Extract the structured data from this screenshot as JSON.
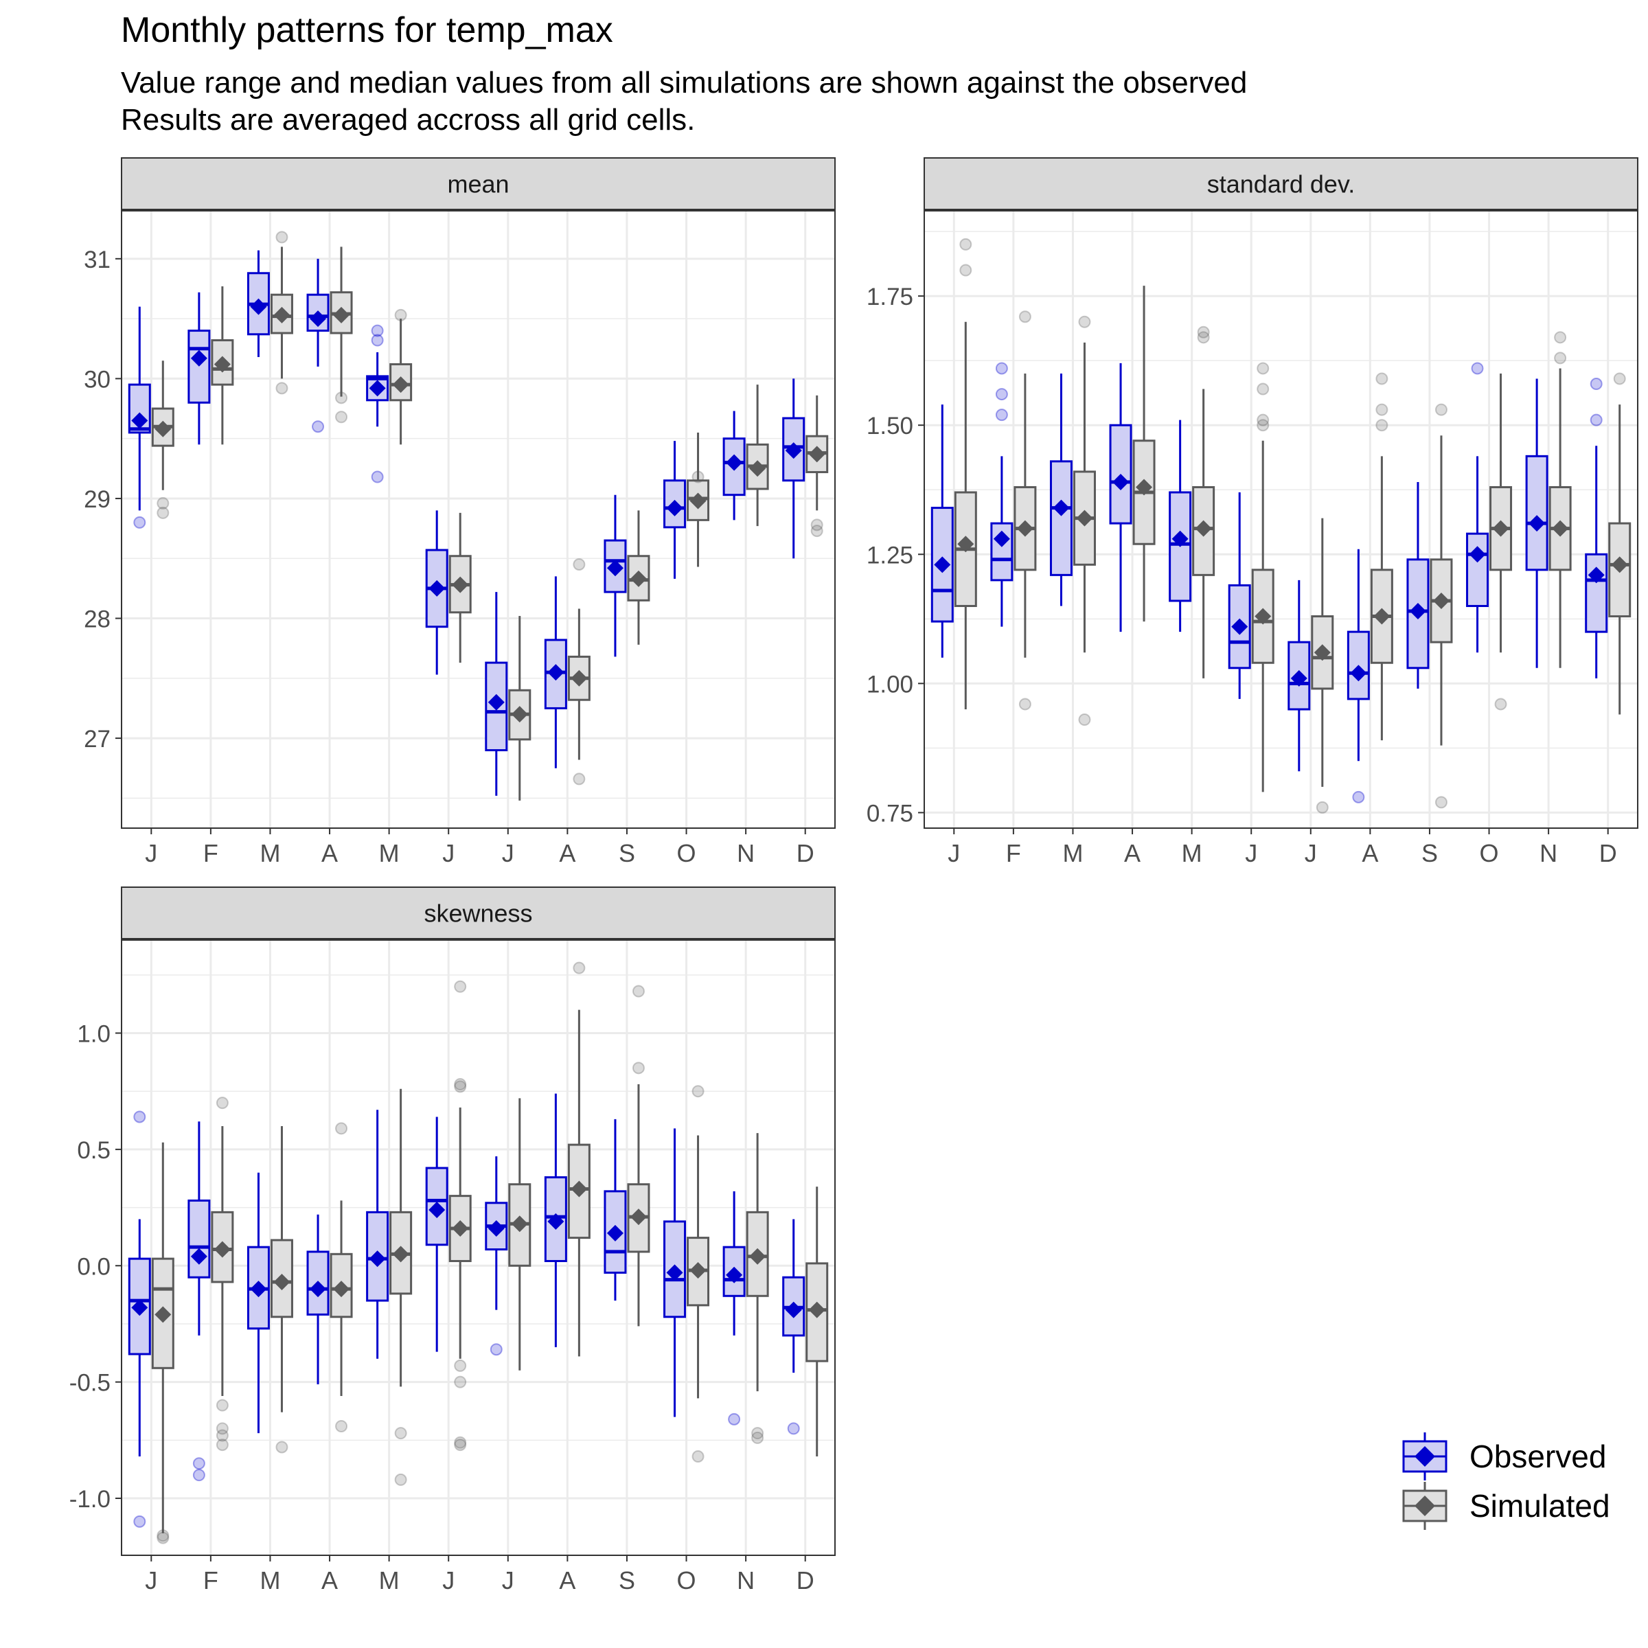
{
  "title": "Monthly patterns for temp_max",
  "subtitle_line1": "Value range and median values from all simulations are shown against the observed",
  "subtitle_line2": "Results are averaged accross all grid cells.",
  "colors": {
    "observed_line": "#0000CD",
    "observed_fill": "#CFCFF5",
    "simulated_line": "#5A5A5A",
    "simulated_fill": "#E0E0E0",
    "strip_fill": "#D9D9D9",
    "grid": "#EBEBEB"
  },
  "legend": {
    "items": [
      {
        "label": "Observed",
        "key": "observed"
      },
      {
        "label": "Simulated",
        "key": "simulated"
      }
    ]
  },
  "chart_data": [
    {
      "type": "boxplot",
      "panel": "mean",
      "categories": [
        "J",
        "F",
        "M",
        "A",
        "M",
        "J",
        "J",
        "A",
        "S",
        "O",
        "N",
        "D"
      ],
      "y_ticks": [
        27,
        28,
        29,
        30,
        31
      ],
      "ylim": [
        26.25,
        31.4
      ],
      "observed": [
        {
          "min": 28.9,
          "q1": 29.55,
          "median": 29.58,
          "q3": 29.95,
          "max": 30.6,
          "mean": 29.65,
          "outliers": [
            28.8
          ]
        },
        {
          "min": 29.45,
          "q1": 29.8,
          "median": 30.25,
          "q3": 30.4,
          "max": 30.72,
          "mean": 30.17,
          "outliers": []
        },
        {
          "min": 30.18,
          "q1": 30.37,
          "median": 30.62,
          "q3": 30.88,
          "max": 31.07,
          "mean": 30.6,
          "outliers": []
        },
        {
          "min": 30.1,
          "q1": 30.4,
          "median": 30.52,
          "q3": 30.7,
          "max": 31.0,
          "mean": 30.5,
          "outliers": [
            29.6
          ]
        },
        {
          "min": 29.6,
          "q1": 29.82,
          "median": 30.0,
          "q3": 30.02,
          "max": 30.22,
          "mean": 29.92,
          "outliers": [
            29.18,
            30.32,
            30.4
          ]
        },
        {
          "min": 27.53,
          "q1": 27.93,
          "median": 28.25,
          "q3": 28.57,
          "max": 28.9,
          "mean": 28.25,
          "outliers": []
        },
        {
          "min": 26.52,
          "q1": 26.9,
          "median": 27.22,
          "q3": 27.63,
          "max": 28.22,
          "mean": 27.3,
          "outliers": []
        },
        {
          "min": 26.75,
          "q1": 27.25,
          "median": 27.55,
          "q3": 27.82,
          "max": 28.35,
          "mean": 27.55,
          "outliers": []
        },
        {
          "min": 27.68,
          "q1": 28.22,
          "median": 28.48,
          "q3": 28.65,
          "max": 29.03,
          "mean": 28.42,
          "outliers": []
        },
        {
          "min": 28.33,
          "q1": 28.76,
          "median": 28.92,
          "q3": 29.15,
          "max": 29.48,
          "mean": 28.92,
          "outliers": []
        },
        {
          "min": 28.82,
          "q1": 29.03,
          "median": 29.3,
          "q3": 29.5,
          "max": 29.73,
          "mean": 29.3,
          "outliers": []
        },
        {
          "min": 28.5,
          "q1": 29.15,
          "median": 29.43,
          "q3": 29.67,
          "max": 30.0,
          "mean": 29.4,
          "outliers": []
        }
      ],
      "simulated": [
        {
          "min": 29.07,
          "q1": 29.44,
          "median": 29.6,
          "q3": 29.75,
          "max": 30.15,
          "mean": 29.58,
          "outliers": [
            28.88,
            28.96
          ]
        },
        {
          "min": 29.45,
          "q1": 29.95,
          "median": 30.08,
          "q3": 30.32,
          "max": 30.77,
          "mean": 30.12,
          "outliers": []
        },
        {
          "min": 30.0,
          "q1": 30.38,
          "median": 30.52,
          "q3": 30.7,
          "max": 31.1,
          "mean": 30.53,
          "outliers": [
            29.92,
            31.18
          ]
        },
        {
          "min": 29.85,
          "q1": 30.38,
          "median": 30.54,
          "q3": 30.72,
          "max": 31.1,
          "mean": 30.53,
          "outliers": [
            29.68,
            29.84
          ]
        },
        {
          "min": 29.45,
          "q1": 29.82,
          "median": 29.95,
          "q3": 30.12,
          "max": 30.5,
          "mean": 29.95,
          "outliers": [
            30.53
          ]
        },
        {
          "min": 27.63,
          "q1": 28.05,
          "median": 28.28,
          "q3": 28.52,
          "max": 28.88,
          "mean": 28.28,
          "outliers": []
        },
        {
          "min": 26.48,
          "q1": 26.99,
          "median": 27.2,
          "q3": 27.4,
          "max": 28.02,
          "mean": 27.2,
          "outliers": []
        },
        {
          "min": 26.82,
          "q1": 27.32,
          "median": 27.5,
          "q3": 27.68,
          "max": 28.08,
          "mean": 27.5,
          "outliers": [
            26.66,
            28.45
          ]
        },
        {
          "min": 27.78,
          "q1": 28.15,
          "median": 28.32,
          "q3": 28.52,
          "max": 28.9,
          "mean": 28.33,
          "outliers": []
        },
        {
          "min": 28.43,
          "q1": 28.82,
          "median": 29.0,
          "q3": 29.15,
          "max": 29.55,
          "mean": 28.98,
          "outliers": [
            29.18
          ]
        },
        {
          "min": 28.77,
          "q1": 29.08,
          "median": 29.27,
          "q3": 29.45,
          "max": 29.95,
          "mean": 29.25,
          "outliers": []
        },
        {
          "min": 28.9,
          "q1": 29.22,
          "median": 29.38,
          "q3": 29.52,
          "max": 29.86,
          "mean": 29.37,
          "outliers": [
            28.73,
            28.78
          ]
        }
      ]
    },
    {
      "type": "boxplot",
      "panel": "standard dev.",
      "categories": [
        "J",
        "F",
        "M",
        "A",
        "M",
        "J",
        "J",
        "A",
        "S",
        "O",
        "N",
        "D"
      ],
      "y_ticks": [
        0.75,
        1.0,
        1.25,
        1.5,
        1.75
      ],
      "y_tick_labels": [
        "0.75",
        "1.00",
        "1.25",
        "1.50",
        "1.75"
      ],
      "ylim": [
        0.72,
        1.915
      ],
      "observed": [
        {
          "min": 1.05,
          "q1": 1.12,
          "median": 1.18,
          "q3": 1.34,
          "max": 1.54,
          "mean": 1.23,
          "outliers": []
        },
        {
          "min": 1.11,
          "q1": 1.2,
          "median": 1.24,
          "q3": 1.31,
          "max": 1.44,
          "mean": 1.28,
          "outliers": [
            1.52,
            1.56,
            1.61
          ]
        },
        {
          "min": 1.15,
          "q1": 1.21,
          "median": 1.34,
          "q3": 1.43,
          "max": 1.6,
          "mean": 1.34,
          "outliers": []
        },
        {
          "min": 1.1,
          "q1": 1.31,
          "median": 1.39,
          "q3": 1.5,
          "max": 1.62,
          "mean": 1.39,
          "outliers": []
        },
        {
          "min": 1.1,
          "q1": 1.16,
          "median": 1.27,
          "q3": 1.37,
          "max": 1.51,
          "mean": 1.28,
          "outliers": []
        },
        {
          "min": 0.97,
          "q1": 1.03,
          "median": 1.08,
          "q3": 1.19,
          "max": 1.37,
          "mean": 1.11,
          "outliers": []
        },
        {
          "min": 0.83,
          "q1": 0.95,
          "median": 1.0,
          "q3": 1.08,
          "max": 1.2,
          "mean": 1.01,
          "outliers": []
        },
        {
          "min": 0.85,
          "q1": 0.97,
          "median": 1.02,
          "q3": 1.1,
          "max": 1.26,
          "mean": 1.02,
          "outliers": [
            0.78
          ]
        },
        {
          "min": 0.99,
          "q1": 1.03,
          "median": 1.14,
          "q3": 1.24,
          "max": 1.39,
          "mean": 1.14,
          "outliers": []
        },
        {
          "min": 1.06,
          "q1": 1.15,
          "median": 1.25,
          "q3": 1.29,
          "max": 1.44,
          "mean": 1.25,
          "outliers": [
            1.61
          ]
        },
        {
          "min": 1.03,
          "q1": 1.22,
          "median": 1.31,
          "q3": 1.44,
          "max": 1.59,
          "mean": 1.31,
          "outliers": []
        },
        {
          "min": 1.01,
          "q1": 1.1,
          "median": 1.2,
          "q3": 1.25,
          "max": 1.46,
          "mean": 1.21,
          "outliers": [
            1.51,
            1.58
          ]
        }
      ],
      "simulated": [
        {
          "min": 0.95,
          "q1": 1.15,
          "median": 1.26,
          "q3": 1.37,
          "max": 1.7,
          "mean": 1.27,
          "outliers": [
            1.8,
            1.85
          ]
        },
        {
          "min": 1.05,
          "q1": 1.22,
          "median": 1.3,
          "q3": 1.38,
          "max": 1.6,
          "mean": 1.3,
          "outliers": [
            0.96,
            1.71
          ]
        },
        {
          "min": 1.06,
          "q1": 1.23,
          "median": 1.32,
          "q3": 1.41,
          "max": 1.66,
          "mean": 1.32,
          "outliers": [
            0.93,
            1.7
          ]
        },
        {
          "min": 1.12,
          "q1": 1.27,
          "median": 1.37,
          "q3": 1.47,
          "max": 1.77,
          "mean": 1.38,
          "outliers": []
        },
        {
          "min": 1.01,
          "q1": 1.21,
          "median": 1.3,
          "q3": 1.38,
          "max": 1.57,
          "mean": 1.3,
          "outliers": [
            1.67,
            1.68
          ]
        },
        {
          "min": 0.79,
          "q1": 1.04,
          "median": 1.12,
          "q3": 1.22,
          "max": 1.47,
          "mean": 1.13,
          "outliers": [
            1.5,
            1.51,
            1.57,
            1.61
          ]
        },
        {
          "min": 0.8,
          "q1": 0.99,
          "median": 1.05,
          "q3": 1.13,
          "max": 1.32,
          "mean": 1.06,
          "outliers": [
            0.76
          ]
        },
        {
          "min": 0.89,
          "q1": 1.04,
          "median": 1.13,
          "q3": 1.22,
          "max": 1.44,
          "mean": 1.13,
          "outliers": [
            1.5,
            1.53,
            1.59
          ]
        },
        {
          "min": 0.88,
          "q1": 1.08,
          "median": 1.16,
          "q3": 1.24,
          "max": 1.48,
          "mean": 1.16,
          "outliers": [
            0.77,
            1.53
          ]
        },
        {
          "min": 1.06,
          "q1": 1.22,
          "median": 1.3,
          "q3": 1.38,
          "max": 1.6,
          "mean": 1.3,
          "outliers": [
            0.96
          ]
        },
        {
          "min": 1.03,
          "q1": 1.22,
          "median": 1.3,
          "q3": 1.38,
          "max": 1.61,
          "mean": 1.3,
          "outliers": [
            1.63,
            1.67
          ]
        },
        {
          "min": 0.94,
          "q1": 1.13,
          "median": 1.23,
          "q3": 1.31,
          "max": 1.54,
          "mean": 1.23,
          "outliers": [
            1.59
          ]
        }
      ]
    },
    {
      "type": "boxplot",
      "panel": "skewness",
      "categories": [
        "J",
        "F",
        "M",
        "A",
        "M",
        "J",
        "J",
        "A",
        "S",
        "O",
        "N",
        "D"
      ],
      "y_ticks": [
        -1.0,
        -0.5,
        0.0,
        0.5,
        1.0
      ],
      "y_tick_labels": [
        "-1.0",
        "-0.5",
        "0.0",
        "0.5",
        "1.0"
      ],
      "ylim": [
        -1.245,
        1.4
      ],
      "observed": [
        {
          "min": -0.82,
          "q1": -0.38,
          "median": -0.15,
          "q3": 0.03,
          "max": 0.2,
          "mean": -0.18,
          "outliers": [
            -1.1,
            0.64
          ]
        },
        {
          "min": -0.3,
          "q1": -0.05,
          "median": 0.08,
          "q3": 0.28,
          "max": 0.62,
          "mean": 0.04,
          "outliers": [
            -0.9,
            -0.85
          ]
        },
        {
          "min": -0.72,
          "q1": -0.27,
          "median": -0.1,
          "q3": 0.08,
          "max": 0.4,
          "mean": -0.1,
          "outliers": []
        },
        {
          "min": -0.51,
          "q1": -0.21,
          "median": -0.1,
          "q3": 0.06,
          "max": 0.22,
          "mean": -0.1,
          "outliers": []
        },
        {
          "min": -0.4,
          "q1": -0.15,
          "median": 0.03,
          "q3": 0.23,
          "max": 0.67,
          "mean": 0.03,
          "outliers": []
        },
        {
          "min": -0.37,
          "q1": 0.09,
          "median": 0.28,
          "q3": 0.42,
          "max": 0.64,
          "mean": 0.24,
          "outliers": []
        },
        {
          "min": -0.19,
          "q1": 0.07,
          "median": 0.17,
          "q3": 0.27,
          "max": 0.47,
          "mean": 0.16,
          "outliers": [
            -0.36
          ]
        },
        {
          "min": -0.35,
          "q1": 0.02,
          "median": 0.21,
          "q3": 0.38,
          "max": 0.74,
          "mean": 0.19,
          "outliers": []
        },
        {
          "min": -0.15,
          "q1": -0.03,
          "median": 0.06,
          "q3": 0.32,
          "max": 0.63,
          "mean": 0.14,
          "outliers": []
        },
        {
          "min": -0.65,
          "q1": -0.22,
          "median": -0.06,
          "q3": 0.19,
          "max": 0.59,
          "mean": -0.03,
          "outliers": []
        },
        {
          "min": -0.3,
          "q1": -0.13,
          "median": -0.06,
          "q3": 0.08,
          "max": 0.32,
          "mean": -0.04,
          "outliers": [
            -0.66
          ]
        },
        {
          "min": -0.46,
          "q1": -0.3,
          "median": -0.18,
          "q3": -0.05,
          "max": 0.2,
          "mean": -0.19,
          "outliers": [
            -0.7
          ]
        }
      ],
      "simulated": [
        {
          "min": -1.15,
          "q1": -0.44,
          "median": -0.1,
          "q3": 0.03,
          "max": 0.53,
          "mean": -0.21,
          "outliers": [
            -1.17,
            -1.16
          ]
        },
        {
          "min": -0.56,
          "q1": -0.07,
          "median": 0.07,
          "q3": 0.23,
          "max": 0.6,
          "mean": 0.07,
          "outliers": [
            -0.77,
            -0.73,
            -0.7,
            -0.6,
            0.7
          ]
        },
        {
          "min": -0.63,
          "q1": -0.22,
          "median": -0.07,
          "q3": 0.11,
          "max": 0.6,
          "mean": -0.07,
          "outliers": [
            -0.78
          ]
        },
        {
          "min": -0.56,
          "q1": -0.22,
          "median": -0.1,
          "q3": 0.05,
          "max": 0.28,
          "mean": -0.1,
          "outliers": [
            -0.69,
            0.59
          ]
        },
        {
          "min": -0.52,
          "q1": -0.12,
          "median": 0.05,
          "q3": 0.23,
          "max": 0.76,
          "mean": 0.05,
          "outliers": [
            -0.92,
            -0.72
          ]
        },
        {
          "min": -0.4,
          "q1": 0.02,
          "median": 0.16,
          "q3": 0.3,
          "max": 0.68,
          "mean": 0.16,
          "outliers": [
            -0.77,
            -0.76,
            -0.5,
            -0.43,
            0.77,
            0.78,
            1.2
          ]
        },
        {
          "min": -0.45,
          "q1": 0.0,
          "median": 0.18,
          "q3": 0.35,
          "max": 0.72,
          "mean": 0.18,
          "outliers": []
        },
        {
          "min": -0.39,
          "q1": 0.12,
          "median": 0.33,
          "q3": 0.52,
          "max": 1.1,
          "mean": 0.33,
          "outliers": [
            1.28
          ]
        },
        {
          "min": -0.26,
          "q1": 0.06,
          "median": 0.21,
          "q3": 0.35,
          "max": 0.78,
          "mean": 0.21,
          "outliers": [
            0.85,
            1.18
          ]
        },
        {
          "min": -0.57,
          "q1": -0.17,
          "median": -0.02,
          "q3": 0.12,
          "max": 0.56,
          "mean": -0.02,
          "outliers": [
            -0.82,
            0.75
          ]
        },
        {
          "min": -0.54,
          "q1": -0.13,
          "median": 0.04,
          "q3": 0.23,
          "max": 0.57,
          "mean": 0.04,
          "outliers": [
            -0.74,
            -0.72
          ]
        },
        {
          "min": -0.82,
          "q1": -0.41,
          "median": -0.19,
          "q3": 0.01,
          "max": 0.34,
          "mean": -0.19,
          "outliers": []
        }
      ]
    }
  ]
}
